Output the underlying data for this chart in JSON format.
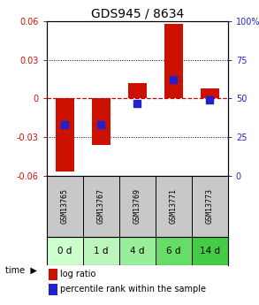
{
  "title": "GDS945 / 8634",
  "samples": [
    "GSM13765",
    "GSM13767",
    "GSM13769",
    "GSM13771",
    "GSM13773"
  ],
  "time_labels": [
    "0 d",
    "1 d",
    "4 d",
    "6 d",
    "14 d"
  ],
  "log_ratio": [
    -0.057,
    -0.036,
    0.012,
    0.058,
    0.008
  ],
  "percentile_rank": [
    0.33,
    0.33,
    0.47,
    0.62,
    0.49
  ],
  "ylim": [
    -0.06,
    0.06
  ],
  "y2lim": [
    0,
    100
  ],
  "yticks": [
    -0.06,
    -0.03,
    0,
    0.03,
    0.06
  ],
  "y2ticks": [
    0,
    25,
    50,
    75,
    100
  ],
  "bar_color": "#cc1100",
  "dot_color": "#2222cc",
  "zero_line_color": "#cc0000",
  "grid_color": "#000000",
  "bg_gsm": "#c8c8c8",
  "bg_time_colors": [
    "#ccffcc",
    "#bbf5bb",
    "#99ee99",
    "#66dd66",
    "#44cc44"
  ],
  "bar_width": 0.5,
  "dot_size": 40,
  "title_fontsize": 10,
  "tick_fontsize": 7,
  "gsm_fontsize": 6,
  "time_fontsize": 7.5,
  "legend_fontsize": 7
}
